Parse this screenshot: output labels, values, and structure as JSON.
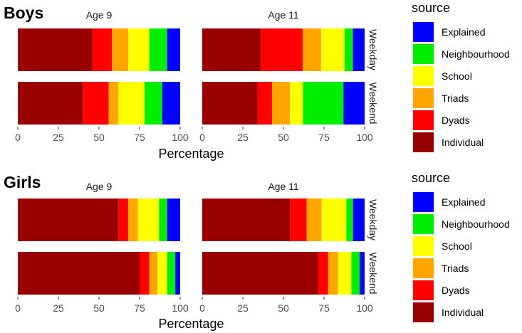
{
  "chart_data": [
    {
      "type": "bar",
      "orientation": "horizontal",
      "stacked": true,
      "title": "Boys",
      "xlabel": "Percentage",
      "xlim": [
        0,
        100
      ],
      "x_ticks": [
        "0",
        "25",
        "50",
        "75",
        "100"
      ],
      "facet_columns": [
        "Age 9",
        "Age 11"
      ],
      "facet_rows": [
        "Weekday",
        "Weekend"
      ],
      "series_names": [
        "Individual",
        "Dyads",
        "Triads",
        "School",
        "Neighbourhood",
        "Explained"
      ],
      "values": {
        "Age 9": {
          "Weekday": [
            46,
            12,
            10,
            13,
            11,
            8
          ],
          "Weekend": [
            40,
            16,
            6,
            16,
            11,
            11
          ]
        },
        "Age 11": {
          "Weekday": [
            35,
            25,
            11,
            14,
            5,
            7
          ],
          "Weekend": [
            34,
            9,
            11,
            8,
            25,
            13
          ]
        }
      }
    },
    {
      "type": "bar",
      "orientation": "horizontal",
      "stacked": true,
      "title": "Girls",
      "xlabel": "Percentage",
      "xlim": [
        0,
        100
      ],
      "x_ticks": [
        "0",
        "25",
        "50",
        "75",
        "100"
      ],
      "facet_columns": [
        "Age 9",
        "Age 11"
      ],
      "facet_rows": [
        "Weekday",
        "Weekend"
      ],
      "series_names": [
        "Individual",
        "Dyads",
        "Triads",
        "School",
        "Neighbourhood",
        "Explained"
      ],
      "values": {
        "Age 9": {
          "Weekday": [
            62,
            6,
            6,
            13,
            5,
            8
          ],
          "Weekend": [
            75,
            6,
            5,
            6,
            5,
            3
          ]
        },
        "Age 11": {
          "Weekday": [
            53,
            10,
            9,
            15,
            4,
            7
          ],
          "Weekend": [
            70,
            6,
            6,
            8,
            5,
            3
          ]
        }
      }
    }
  ],
  "legend": {
    "title": "source",
    "entries": [
      "Explained",
      "Neighbourhood",
      "School",
      "Triads",
      "Dyads",
      "Individual"
    ]
  },
  "colors": {
    "Individual": "#990000",
    "Dyads": "#ff0000",
    "Triads": "#ffa500",
    "School": "#ffff00",
    "Neighbourhood": "#00ee00",
    "Explained": "#0000ff"
  }
}
